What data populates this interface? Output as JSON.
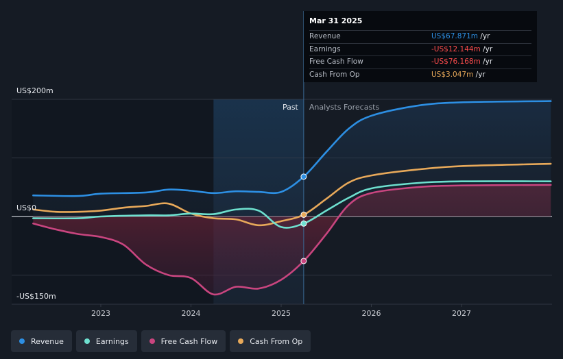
{
  "colors": {
    "revenue": "#2d8fe3",
    "earnings": "#6ee0cf",
    "free_cash_flow": "#c9457f",
    "cash_from_op": "#e8a95a",
    "negative_value": "#ff4d4d",
    "grid": "#3a414c",
    "background": "#151b24"
  },
  "tooltip": {
    "date": "Mar 31 2025",
    "rows": [
      {
        "label": "Revenue",
        "value": "US$67.871m",
        "unit": " /yr",
        "color": "#2d8fe3"
      },
      {
        "label": "Earnings",
        "value": "-US$12.144m",
        "unit": " /yr",
        "color": "#ff4d4d"
      },
      {
        "label": "Free Cash Flow",
        "value": "-US$76.168m",
        "unit": " /yr",
        "color": "#ff4d4d"
      },
      {
        "label": "Cash From Op",
        "value": "US$3.047m",
        "unit": " /yr",
        "color": "#e8a95a"
      }
    ]
  },
  "legend": [
    {
      "label": "Revenue",
      "color": "#2d8fe3"
    },
    {
      "label": "Earnings",
      "color": "#6ee0cf"
    },
    {
      "label": "Free Cash Flow",
      "color": "#c9457f"
    },
    {
      "label": "Cash From Op",
      "color": "#e8a95a"
    }
  ],
  "chart_data": {
    "type": "line",
    "y_tick_labels": [
      "US$200m",
      "US$0",
      "-US$150m"
    ],
    "x_tick_labels": [
      "2023",
      "2024",
      "2025",
      "2026",
      "2027"
    ],
    "ylim": [
      -150,
      200
    ],
    "xlim": [
      2022.23,
      2027.99
    ],
    "period_labels": {
      "past": "Past",
      "forecast": "Analysts Forecasts"
    },
    "divider_x": 2025.25,
    "highlight_start": 2024.25,
    "grid": true,
    "series": [
      {
        "name": "Revenue",
        "color": "#2d8fe3",
        "points": [
          [
            2022.25,
            36
          ],
          [
            2022.75,
            35
          ],
          [
            2023.0,
            39
          ],
          [
            2023.5,
            41
          ],
          [
            2023.75,
            46
          ],
          [
            2024.0,
            44
          ],
          [
            2024.25,
            40
          ],
          [
            2024.5,
            43
          ],
          [
            2024.75,
            42
          ],
          [
            2025.0,
            42
          ],
          [
            2025.25,
            68
          ],
          [
            2025.5,
            110
          ],
          [
            2025.75,
            150
          ],
          [
            2026.0,
            172
          ],
          [
            2026.5,
            189
          ],
          [
            2027.0,
            195
          ],
          [
            2028.0,
            197
          ]
        ]
      },
      {
        "name": "Earnings",
        "color": "#6ee0cf",
        "points": [
          [
            2022.25,
            -3
          ],
          [
            2022.75,
            -3
          ],
          [
            2023.0,
            0
          ],
          [
            2023.5,
            2
          ],
          [
            2023.75,
            2
          ],
          [
            2024.0,
            5
          ],
          [
            2024.25,
            4
          ],
          [
            2024.5,
            12
          ],
          [
            2024.75,
            10
          ],
          [
            2025.0,
            -18
          ],
          [
            2025.25,
            -12
          ],
          [
            2025.5,
            10
          ],
          [
            2025.75,
            32
          ],
          [
            2026.0,
            48
          ],
          [
            2026.5,
            57
          ],
          [
            2027.0,
            60
          ],
          [
            2028.0,
            60
          ]
        ]
      },
      {
        "name": "Free Cash Flow",
        "color": "#c9457f",
        "points": [
          [
            2022.25,
            -12
          ],
          [
            2022.5,
            -22
          ],
          [
            2022.75,
            -30
          ],
          [
            2023.0,
            -35
          ],
          [
            2023.25,
            -48
          ],
          [
            2023.5,
            -82
          ],
          [
            2023.75,
            -100
          ],
          [
            2024.0,
            -105
          ],
          [
            2024.25,
            -133
          ],
          [
            2024.5,
            -120
          ],
          [
            2024.75,
            -123
          ],
          [
            2025.0,
            -108
          ],
          [
            2025.25,
            -76
          ],
          [
            2025.5,
            -30
          ],
          [
            2025.75,
            20
          ],
          [
            2026.0,
            40
          ],
          [
            2026.5,
            50
          ],
          [
            2027.0,
            53
          ],
          [
            2028.0,
            54
          ]
        ]
      },
      {
        "name": "Cash From Op",
        "color": "#e8a95a",
        "points": [
          [
            2022.25,
            12
          ],
          [
            2022.5,
            8
          ],
          [
            2022.75,
            8
          ],
          [
            2023.0,
            10
          ],
          [
            2023.25,
            15
          ],
          [
            2023.5,
            18
          ],
          [
            2023.75,
            22
          ],
          [
            2024.0,
            5
          ],
          [
            2024.25,
            -3
          ],
          [
            2024.5,
            -5
          ],
          [
            2024.75,
            -15
          ],
          [
            2025.0,
            -8
          ],
          [
            2025.25,
            3
          ],
          [
            2025.5,
            30
          ],
          [
            2025.75,
            58
          ],
          [
            2026.0,
            70
          ],
          [
            2026.5,
            80
          ],
          [
            2027.0,
            86
          ],
          [
            2028.0,
            90
          ]
        ]
      }
    ]
  }
}
